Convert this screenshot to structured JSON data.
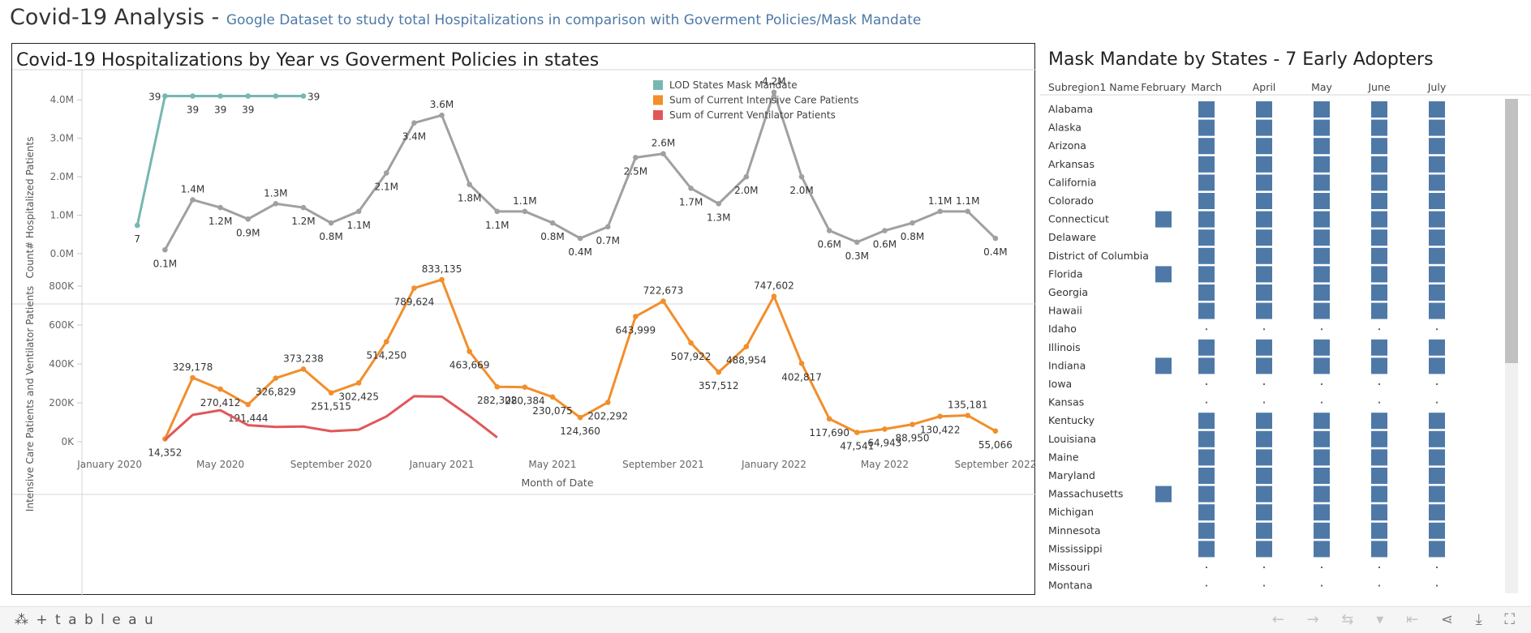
{
  "header": {
    "title": "Covid-19 Analysis",
    "separator": " - ",
    "subtitle": "Google Dataset to study total Hospitalizations in comparison with Goverment Policies/Mask Mandate"
  },
  "left_panel": {
    "title": "Covid-19 Hospitalizations by Year vs Goverment Policies in states"
  },
  "right_panel": {
    "title": "Mask Mandate by States - 7 Early Adopters"
  },
  "footer": {
    "logo_text": "⁂ + t a b l e a u",
    "icons": [
      "undo-icon",
      "redo-icon",
      "revert-icon",
      "dropdown-icon",
      "first-icon",
      "share-icon",
      "download-icon",
      "fullscreen-icon"
    ]
  },
  "chart_data": [
    {
      "type": "line",
      "ylabel": "Count# Hospitalized Patients",
      "yticks": [
        "0.0M",
        "1.0M",
        "2.0M",
        "3.0M",
        "4.0M"
      ],
      "ylim": [
        0,
        4.3
      ],
      "xlim": [
        "2019-12",
        "2022-10"
      ],
      "grid": false,
      "legend_position": "top-right",
      "legend_entries": [
        {
          "label": "LOD States Mask Mandate",
          "color": "#76b7b2"
        },
        {
          "label": "Sum of Current Intensive Care Patients",
          "color": "#f28e2b"
        },
        {
          "label": "Sum of Current Ventilator Patients",
          "color": "#e15759"
        }
      ],
      "series": [
        {
          "name": "LOD States Mask Mandate",
          "color": "#76b7b2",
          "x": [
            "2020-02",
            "2020-03",
            "2020-04",
            "2020-05",
            "2020-06",
            "2020-07",
            "2020-08"
          ],
          "values": [
            7,
            39,
            39,
            39,
            39,
            39,
            39
          ],
          "labels": [
            "7",
            "39",
            "39",
            "39",
            "39",
            "",
            "39"
          ]
        },
        {
          "color": "#a0a0a0",
          "x": [
            "2020-03",
            "2020-04",
            "2020-05",
            "2020-06",
            "2020-07",
            "2020-08",
            "2020-09",
            "2020-10",
            "2020-11",
            "2020-12",
            "2021-01",
            "2021-02",
            "2021-03",
            "2021-04",
            "2021-05",
            "2021-06",
            "2021-07",
            "2021-08",
            "2021-09",
            "2021-10",
            "2021-11",
            "2021-12",
            "2022-01",
            "2022-02",
            "2022-03",
            "2022-04",
            "2022-05",
            "2022-06",
            "2022-07",
            "2022-08",
            "2022-09"
          ],
          "values": [
            0.1,
            1.4,
            1.2,
            0.9,
            1.3,
            1.2,
            0.8,
            1.1,
            2.1,
            3.4,
            3.6,
            1.8,
            1.1,
            1.1,
            0.8,
            0.4,
            0.7,
            2.5,
            2.6,
            1.7,
            1.3,
            2.0,
            4.2,
            2.0,
            0.6,
            0.3,
            0.6,
            0.8,
            1.1,
            1.1,
            0.4
          ],
          "labels": [
            "0.1M",
            "1.4M",
            "1.2M",
            "0.9M",
            "1.3M",
            "1.2M",
            "0.8M",
            "1.1M",
            "2.1M",
            "3.4M",
            "3.6M",
            "1.8M",
            "1.1M",
            "1.1M",
            "0.8M",
            "0.4M",
            "0.7M",
            "2.5M",
            "2.6M",
            "1.7M",
            "1.3M",
            "2.0M",
            "4.2M",
            "2.0M",
            "0.6M",
            "0.3M",
            "0.6M",
            "0.8M",
            "1.1M",
            "1.1M",
            "0.4M"
          ]
        }
      ]
    },
    {
      "type": "line",
      "ylabel": "Intensive Care Patients and Ventilator Patients",
      "yticks": [
        "0K",
        "200K",
        "400K",
        "600K",
        "800K"
      ],
      "ylim": [
        0,
        850000
      ],
      "xlabel": "Month of Date",
      "xticks": [
        "January 2020",
        "May 2020",
        "September 2020",
        "January 2021",
        "May 2021",
        "September 2021",
        "January 2022",
        "May 2022",
        "September 2022"
      ],
      "xlim": [
        "2019-12",
        "2022-10"
      ],
      "grid": false,
      "series": [
        {
          "name": "Sum of Current Intensive Care Patients",
          "color": "#f28e2b",
          "x": [
            "2020-03",
            "2020-04",
            "2020-05",
            "2020-06",
            "2020-07",
            "2020-08",
            "2020-09",
            "2020-10",
            "2020-11",
            "2020-12",
            "2021-01",
            "2021-02",
            "2021-03",
            "2021-04",
            "2021-05",
            "2021-06",
            "2021-07",
            "2021-08",
            "2021-09",
            "2021-10",
            "2021-11",
            "2021-12",
            "2022-01",
            "2022-02",
            "2022-03",
            "2022-04",
            "2022-05",
            "2022-06",
            "2022-07",
            "2022-08",
            "2022-09"
          ],
          "values": [
            14352,
            329178,
            270412,
            191444,
            326829,
            373238,
            251515,
            302425,
            514250,
            789624,
            833135,
            463669,
            282302,
            280384,
            230075,
            124360,
            202292,
            643999,
            722673,
            507922,
            357512,
            488954,
            747602,
            402817,
            117690,
            47541,
            64943,
            88950,
            130422,
            135181,
            55066
          ],
          "labels": [
            "14,352",
            "329,178",
            "270,412",
            "191,444",
            "326,829",
            "373,238",
            "251,515",
            "302,425",
            "514,250",
            "789,624",
            "833,135",
            "463,669",
            "282,302",
            "280,384",
            "230,075",
            "124,360",
            "202,292",
            "643,999",
            "722,673",
            "507,922",
            "357,512",
            "488,954",
            "747,602",
            "402,817",
            "117,690",
            "47,541",
            "64,943",
            "88,950",
            "130,422",
            "135,181",
            "55,066"
          ]
        },
        {
          "name": "Sum of Current Ventilator Patients",
          "color": "#e15759",
          "x": [
            "2020-03",
            "2020-04",
            "2020-05",
            "2020-06",
            "2020-07",
            "2020-08",
            "2020-09",
            "2020-10",
            "2020-11",
            "2020-12",
            "2021-01",
            "2021-02",
            "2021-03"
          ],
          "values": [
            10000,
            138000,
            162000,
            85000,
            76000,
            78000,
            54000,
            62000,
            130000,
            234000,
            232000,
            132000,
            22000
          ]
        }
      ]
    },
    {
      "type": "table",
      "row_header": "Subregion1 Name",
      "columns": [
        "February",
        "March",
        "April",
        "May",
        "June",
        "July"
      ],
      "rows": [
        {
          "state": "Alabama",
          "marks": [
            0,
            1,
            1,
            1,
            1,
            1
          ]
        },
        {
          "state": "Alaska",
          "marks": [
            0,
            1,
            1,
            1,
            1,
            1
          ]
        },
        {
          "state": "Arizona",
          "marks": [
            0,
            1,
            1,
            1,
            1,
            1
          ]
        },
        {
          "state": "Arkansas",
          "marks": [
            0,
            1,
            1,
            1,
            1,
            1
          ]
        },
        {
          "state": "California",
          "marks": [
            0,
            1,
            1,
            1,
            1,
            1
          ]
        },
        {
          "state": "Colorado",
          "marks": [
            0,
            1,
            1,
            1,
            1,
            1
          ]
        },
        {
          "state": "Connecticut",
          "marks": [
            1,
            1,
            1,
            1,
            1,
            1
          ]
        },
        {
          "state": "Delaware",
          "marks": [
            0,
            1,
            1,
            1,
            1,
            1
          ]
        },
        {
          "state": "District of Columbia",
          "marks": [
            0,
            1,
            1,
            1,
            1,
            1
          ]
        },
        {
          "state": "Florida",
          "marks": [
            1,
            1,
            1,
            1,
            1,
            1
          ]
        },
        {
          "state": "Georgia",
          "marks": [
            0,
            1,
            1,
            1,
            1,
            1
          ]
        },
        {
          "state": "Hawaii",
          "marks": [
            0,
            1,
            1,
            1,
            1,
            1
          ]
        },
        {
          "state": "Idaho",
          "marks": [
            0,
            2,
            2,
            2,
            2,
            2
          ]
        },
        {
          "state": "Illinois",
          "marks": [
            0,
            1,
            1,
            1,
            1,
            1
          ]
        },
        {
          "state": "Indiana",
          "marks": [
            1,
            1,
            1,
            1,
            1,
            1
          ]
        },
        {
          "state": "Iowa",
          "marks": [
            0,
            2,
            2,
            2,
            2,
            2
          ]
        },
        {
          "state": "Kansas",
          "marks": [
            0,
            2,
            2,
            2,
            2,
            2
          ]
        },
        {
          "state": "Kentucky",
          "marks": [
            0,
            1,
            1,
            1,
            1,
            1
          ]
        },
        {
          "state": "Louisiana",
          "marks": [
            0,
            1,
            1,
            1,
            1,
            1
          ]
        },
        {
          "state": "Maine",
          "marks": [
            0,
            1,
            1,
            1,
            1,
            1
          ]
        },
        {
          "state": "Maryland",
          "marks": [
            0,
            1,
            1,
            1,
            1,
            1
          ]
        },
        {
          "state": "Massachusetts",
          "marks": [
            1,
            1,
            1,
            1,
            1,
            1
          ]
        },
        {
          "state": "Michigan",
          "marks": [
            0,
            1,
            1,
            1,
            1,
            1
          ]
        },
        {
          "state": "Minnesota",
          "marks": [
            0,
            1,
            1,
            1,
            1,
            1
          ]
        },
        {
          "state": "Mississippi",
          "marks": [
            0,
            1,
            1,
            1,
            1,
            1
          ]
        },
        {
          "state": "Missouri",
          "marks": [
            0,
            2,
            2,
            2,
            2,
            2
          ]
        },
        {
          "state": "Montana",
          "marks": [
            0,
            2,
            2,
            2,
            2,
            2
          ]
        }
      ],
      "mark_color": "#4e79a7"
    }
  ]
}
